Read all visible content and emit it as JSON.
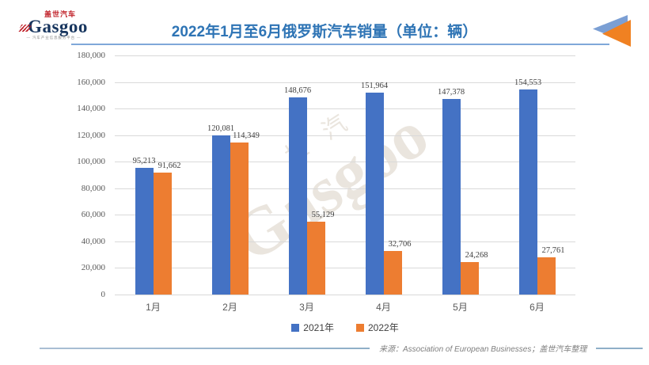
{
  "header": {
    "title": "2022年1月至6月俄罗斯汽车销量（单位：辆）",
    "logo": {
      "cn": "盖世汽车",
      "en": "Gasgoo",
      "tagline": "— 汽车产业信息服务平台 —"
    }
  },
  "watermark": {
    "cn": "世汽",
    "en": "Gasgoo"
  },
  "chart_data": {
    "type": "bar",
    "categories": [
      "1月",
      "2月",
      "3月",
      "4月",
      "5月",
      "6月"
    ],
    "series": [
      {
        "name": "2021年",
        "color": "#4472C4",
        "values": [
          95213,
          120081,
          148676,
          151964,
          147378,
          154553
        ]
      },
      {
        "name": "2022年",
        "color": "#ED7D31",
        "values": [
          91662,
          114349,
          55129,
          32706,
          24268,
          27761
        ]
      }
    ],
    "title": "2022年1月至6月俄罗斯汽车销量（单位：辆）",
    "xlabel": "",
    "ylabel": "",
    "ylim": [
      0,
      180000
    ],
    "ytick_step": 20000,
    "grid": true,
    "legend_position": "bottom",
    "data_labels": true
  },
  "footer": {
    "source": "来源：Association of European Businesses；盖世汽车整理"
  },
  "colors": {
    "title_blue": "#2E74B5",
    "header_line": "#7FA8D9",
    "bar_2021": "#4472C4",
    "bar_2022": "#ED7D31",
    "gridline": "#D9D9D9",
    "axis_text": "#595959",
    "label_text": "#404040",
    "footer_text": "#7F7F7F",
    "corner_triangle_blue": "#7B9FD4",
    "corner_triangle_orange": "#F08122"
  }
}
